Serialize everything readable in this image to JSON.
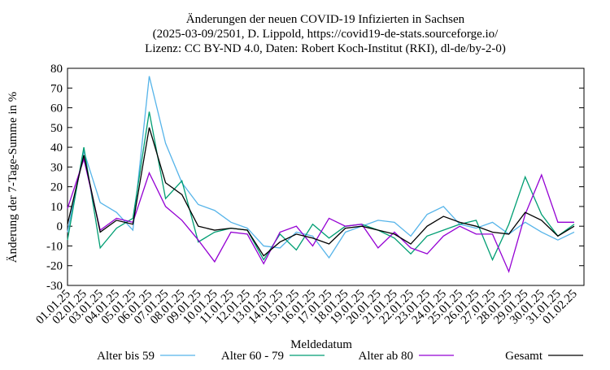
{
  "chart_data": {
    "type": "line",
    "title": "Änderungen der neuen COVID-19 Infizierten in Sachsen",
    "subtitle": "(2025-03-09/2501, D. Lippold, https://covid19-de-stats.sourceforge.io/",
    "subtitle2": "Lizenz: CC BY-ND 4.0, Daten: Robert Koch-Institut (RKI), dl-de/by-2-0)",
    "x_label": "Meldedatum",
    "y_label": "Änderung der 7-Tage-Summe in %",
    "categories": [
      "01.01.25",
      "02.01.25",
      "03.01.25",
      "04.01.25",
      "05.01.25",
      "06.01.25",
      "07.01.25",
      "08.01.25",
      "09.01.25",
      "10.01.25",
      "11.01.25",
      "12.01.25",
      "13.01.25",
      "14.01.25",
      "15.01.25",
      "16.01.25",
      "17.01.25",
      "18.01.25",
      "19.01.25",
      "20.01.25",
      "21.01.25",
      "22.01.25",
      "23.01.25",
      "24.01.25",
      "25.01.25",
      "26.01.25",
      "27.01.25",
      "28.01.25",
      "29.01.25",
      "30.01.25",
      "31.01.25",
      "01.02.25"
    ],
    "series": [
      {
        "name": "Alter bis 59",
        "color": "#56b4e9",
        "values": [
          -3,
          38,
          12,
          7,
          -2,
          76,
          42,
          22,
          11,
          8,
          2,
          -1,
          -10,
          -11,
          -3,
          -5,
          -16,
          -3,
          0,
          3,
          2,
          -5,
          6,
          10,
          1,
          -1,
          2,
          -4,
          2,
          -3,
          -7,
          -3
        ]
      },
      {
        "name": "Alter 60 - 79",
        "color": "#009e73",
        "values": [
          -7,
          40,
          -11,
          -1,
          4,
          58,
          14,
          23,
          -8,
          -3,
          -1,
          -2,
          -17,
          -4,
          -12,
          1,
          -6,
          0,
          1,
          -2,
          -6,
          -14,
          -5,
          -2,
          1,
          3,
          -17,
          1,
          25,
          6,
          -5,
          1
        ]
      },
      {
        "name": "Alter ab 80",
        "color": "#9400d3",
        "values": [
          9,
          34,
          -2,
          4,
          2,
          27,
          10,
          3,
          -7,
          -18,
          -3,
          -4,
          -19,
          -3,
          0,
          -10,
          4,
          0,
          1,
          -11,
          -3,
          -11,
          -14,
          -5,
          0,
          -4,
          -4,
          -23,
          6,
          26,
          2,
          2
        ]
      },
      {
        "name": "Gesamt",
        "color": "#000000",
        "values": [
          1,
          36,
          -3,
          3,
          1,
          50,
          22,
          16,
          0,
          -2,
          -1,
          -2,
          -15,
          -8,
          -4,
          -6,
          -9,
          -1,
          0,
          -2,
          -4,
          -9,
          0,
          5,
          2,
          0,
          -3,
          -4,
          7,
          3,
          -5,
          0
        ]
      }
    ],
    "ylim": [
      -30,
      80
    ],
    "yticks": [
      -30,
      -20,
      -10,
      0,
      10,
      20,
      30,
      40,
      50,
      60,
      70,
      80
    ],
    "grid": false,
    "legend": "bottom"
  }
}
